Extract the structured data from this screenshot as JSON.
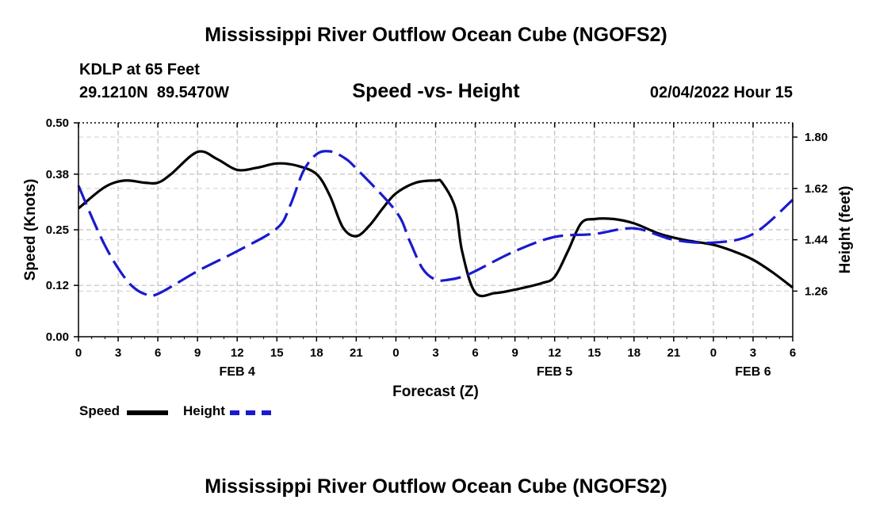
{
  "header": {
    "title": "Mississippi River Outflow Ocean Cube (NGOFS2)",
    "station": "KDLP at 65 Feet",
    "coords": "29.1210N  89.5470W",
    "subtitle": "Speed -vs- Height",
    "datetime": "02/04/2022 Hour 15"
  },
  "legend": {
    "speed_label": "Speed",
    "height_label": "Height",
    "speed_color": "#000000",
    "height_color": "#1a1acc"
  },
  "footer": {
    "title": "Mississippi River Outflow Ocean Cube (NGOFS2)"
  },
  "chart_data": {
    "type": "line",
    "title": "Speed -vs- Height",
    "xlabel": "Forecast (Z)",
    "ylabel": "Speed (Knots)",
    "y2label": "Height (feet)",
    "xlim": [
      0,
      54
    ],
    "ylim": [
      0,
      0.5
    ],
    "y2lim": [
      1.1,
      1.85
    ],
    "x_ticks": [
      0,
      3,
      6,
      9,
      12,
      15,
      18,
      21,
      24,
      27,
      30,
      33,
      36,
      39,
      42,
      45,
      48,
      51,
      54
    ],
    "x_tick_labels": [
      "0",
      "3",
      "6",
      "9",
      "12",
      "15",
      "18",
      "21",
      "0",
      "3",
      "6",
      "9",
      "12",
      "15",
      "18",
      "21",
      "0",
      "3",
      "6"
    ],
    "date_labels": [
      {
        "x": 12,
        "label": "FEB 4"
      },
      {
        "x": 36,
        "label": "FEB 5"
      },
      {
        "x": 51,
        "label": "FEB 6"
      }
    ],
    "y_ticks": [
      0.0,
      0.12,
      0.25,
      0.38,
      0.5
    ],
    "y_tick_labels": [
      "0.00",
      "0.12",
      "0.25",
      "0.38",
      "0.50"
    ],
    "y2_ticks": [
      1.26,
      1.44,
      1.62,
      1.8
    ],
    "y2_tick_labels": [
      "1.26",
      "1.44",
      "1.62",
      "1.80"
    ],
    "grid": true,
    "series": [
      {
        "name": "Speed",
        "axis": "left",
        "color": "#000000",
        "dash": "solid",
        "x": [
          0,
          2,
          3.5,
          5,
          6,
          7,
          9,
          10.5,
          12,
          13.5,
          15,
          16.5,
          18,
          19,
          20,
          21,
          22,
          23,
          24,
          25.5,
          27,
          27.5,
          28.5,
          29,
          30,
          31.5,
          33,
          35,
          36,
          37,
          38,
          39,
          40.5,
          42,
          44,
          46,
          48,
          49.5,
          51,
          52.5,
          54
        ],
        "values": [
          0.3,
          0.35,
          0.365,
          0.36,
          0.36,
          0.38,
          0.432,
          0.415,
          0.39,
          0.395,
          0.405,
          0.4,
          0.38,
          0.33,
          0.255,
          0.235,
          0.26,
          0.3,
          0.335,
          0.36,
          0.365,
          0.36,
          0.3,
          0.2,
          0.103,
          0.102,
          0.11,
          0.125,
          0.14,
          0.2,
          0.265,
          0.275,
          0.275,
          0.265,
          0.24,
          0.225,
          0.215,
          0.2,
          0.18,
          0.15,
          0.115
        ]
      },
      {
        "name": "Height",
        "axis": "right",
        "color": "#1a1acc",
        "dash": "dashed",
        "x": [
          0,
          1,
          2,
          3,
          4,
          5,
          6,
          9,
          12,
          15,
          16,
          17,
          18,
          19,
          20,
          21,
          24,
          25,
          26,
          27,
          28,
          29,
          30,
          33,
          36,
          39,
          42,
          45,
          48,
          51,
          54
        ],
        "values": [
          1.63,
          1.52,
          1.42,
          1.34,
          1.28,
          1.25,
          1.25,
          1.33,
          1.4,
          1.48,
          1.56,
          1.68,
          1.74,
          1.75,
          1.73,
          1.69,
          1.54,
          1.44,
          1.34,
          1.3,
          1.3,
          1.31,
          1.33,
          1.4,
          1.45,
          1.46,
          1.48,
          1.44,
          1.43,
          1.46,
          1.58
        ]
      }
    ]
  }
}
